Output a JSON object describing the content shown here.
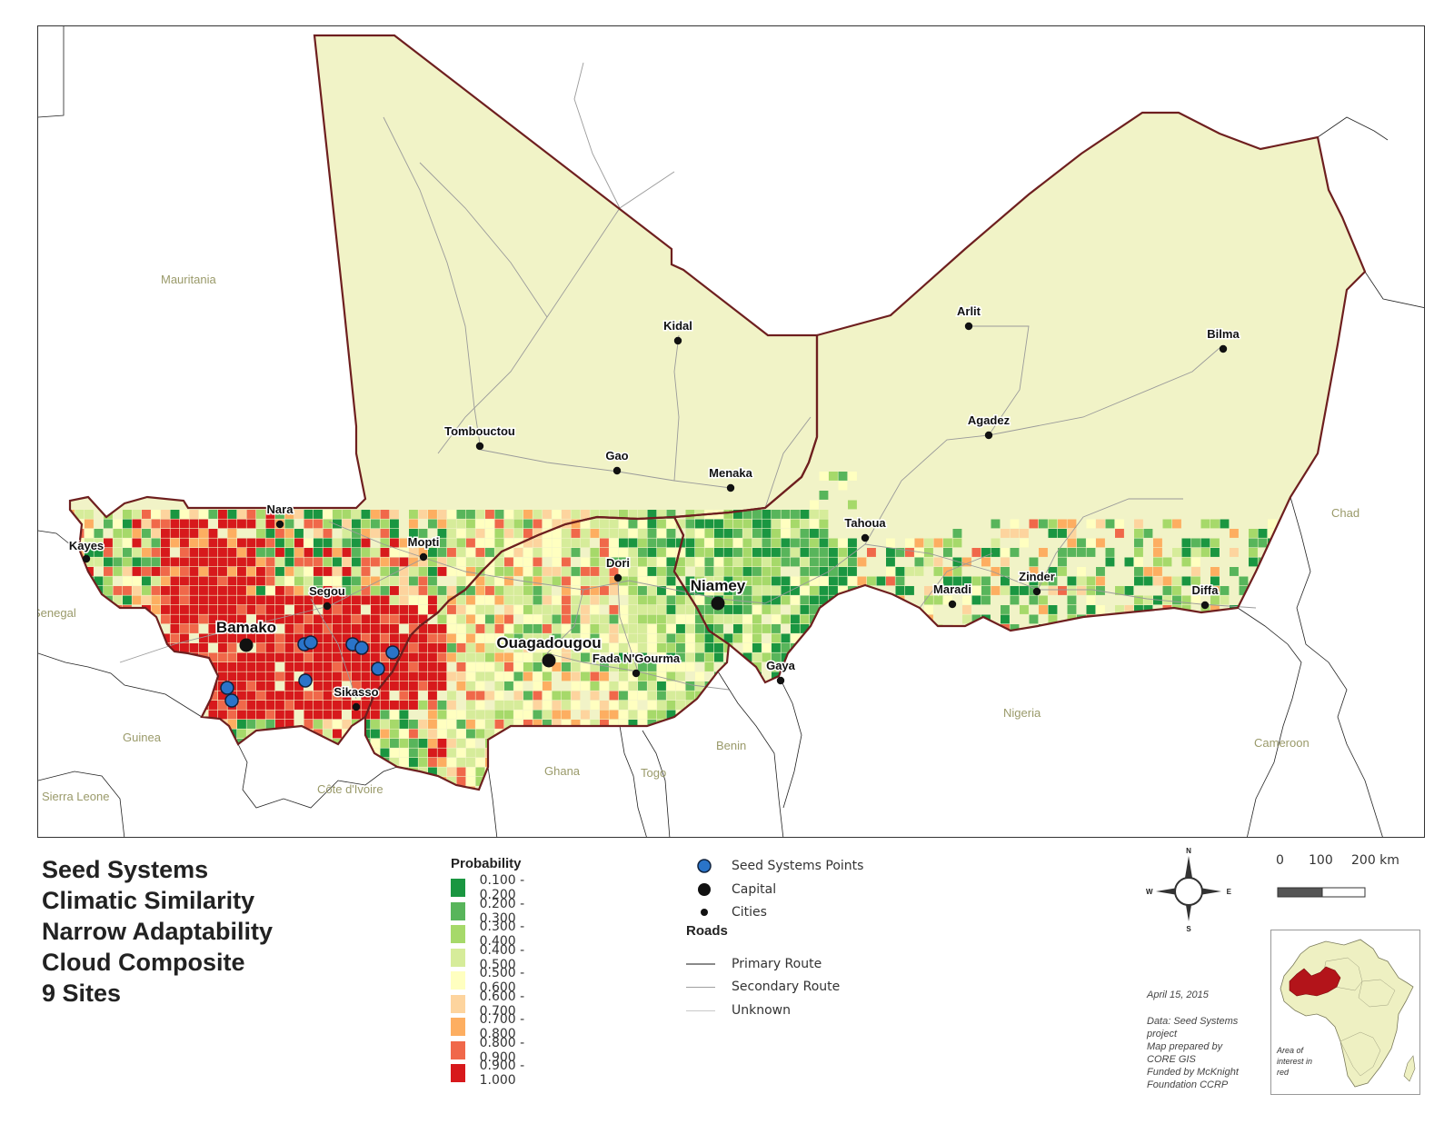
{
  "map": {
    "countries": {
      "mauritania": "Mauritania",
      "senegal": "Senegal",
      "guinea": "Guinea",
      "sierra_leone": "Sierra Leone",
      "cote_divoire": "Côte d'Ivoire",
      "ghana": "Ghana",
      "togo": "Togo",
      "benin": "Benin",
      "nigeria": "Nigeria",
      "cameroon": "Cameroon",
      "chad": "Chad"
    },
    "capitals": [
      {
        "name": "Bamako"
      },
      {
        "name": "Ouagadougou"
      },
      {
        "name": "Niamey"
      }
    ],
    "cities": [
      {
        "name": "Kidal"
      },
      {
        "name": "Tombouctou"
      },
      {
        "name": "Gao"
      },
      {
        "name": "Menaka"
      },
      {
        "name": "Nara"
      },
      {
        "name": "Kayes"
      },
      {
        "name": "Mopti"
      },
      {
        "name": "Segou"
      },
      {
        "name": "Sikasso"
      },
      {
        "name": "Dori"
      },
      {
        "name": "Fada N'Gourma"
      },
      {
        "name": "Gaya"
      },
      {
        "name": "Tahoua"
      },
      {
        "name": "Maradi"
      },
      {
        "name": "Zinder"
      },
      {
        "name": "Diffa"
      },
      {
        "name": "Arlit"
      },
      {
        "name": "Agadez"
      },
      {
        "name": "Bilma"
      }
    ],
    "seed_points_count": 9,
    "colors": {
      "land": "#f1f3c7",
      "border": "#6e1f1f",
      "road": "#9a9a9a",
      "country_label": "#9a9a6a"
    }
  },
  "title": {
    "line1": "Seed Systems",
    "line2": "Climatic Similarity",
    "line3": "Narrow Adaptability",
    "line4": "Cloud Composite",
    "line5": "9 Sites"
  },
  "legend": {
    "probability_heading": "Probability",
    "classes": [
      {
        "label": "0.100 - 0.200",
        "color": "#1a9641"
      },
      {
        "label": "0.200 - 0.300",
        "color": "#58b55b"
      },
      {
        "label": "0.300 - 0.400",
        "color": "#a6d96a"
      },
      {
        "label": "0.400 - 0.500",
        "color": "#d6ec9a"
      },
      {
        "label": "0.500 - 0.600",
        "color": "#ffffc0"
      },
      {
        "label": "0.600 - 0.700",
        "color": "#fdd49e"
      },
      {
        "label": "0.700 - 0.800",
        "color": "#fdae61"
      },
      {
        "label": "0.800 - 0.900",
        "color": "#f0684a"
      },
      {
        "label": "0.900 - 1.000",
        "color": "#d7191c"
      }
    ],
    "points": {
      "seed_systems": "Seed Systems Points",
      "capital": "Capital",
      "cities": "Cities",
      "seed_color": "#2a74c9"
    },
    "roads_heading": "Roads",
    "roads": {
      "primary": "Primary Route",
      "secondary": "Secondary Route",
      "unknown": "Unknown"
    }
  },
  "compass": {
    "n": "N",
    "s": "S",
    "e": "E",
    "w": "W"
  },
  "scale": {
    "t0": "0",
    "t1": "100",
    "t2": "200 km"
  },
  "credits": {
    "date": "April 15, 2015",
    "line1": "Data:  Seed Systems",
    "line2": "project",
    "line3": "Map prepared by",
    "line4": "CORE GIS",
    "line5": "Funded by McKnight",
    "line6": "Foundation CCRP"
  },
  "inset": {
    "caption": "Area of interest in red",
    "highlight": "#b3141a"
  }
}
